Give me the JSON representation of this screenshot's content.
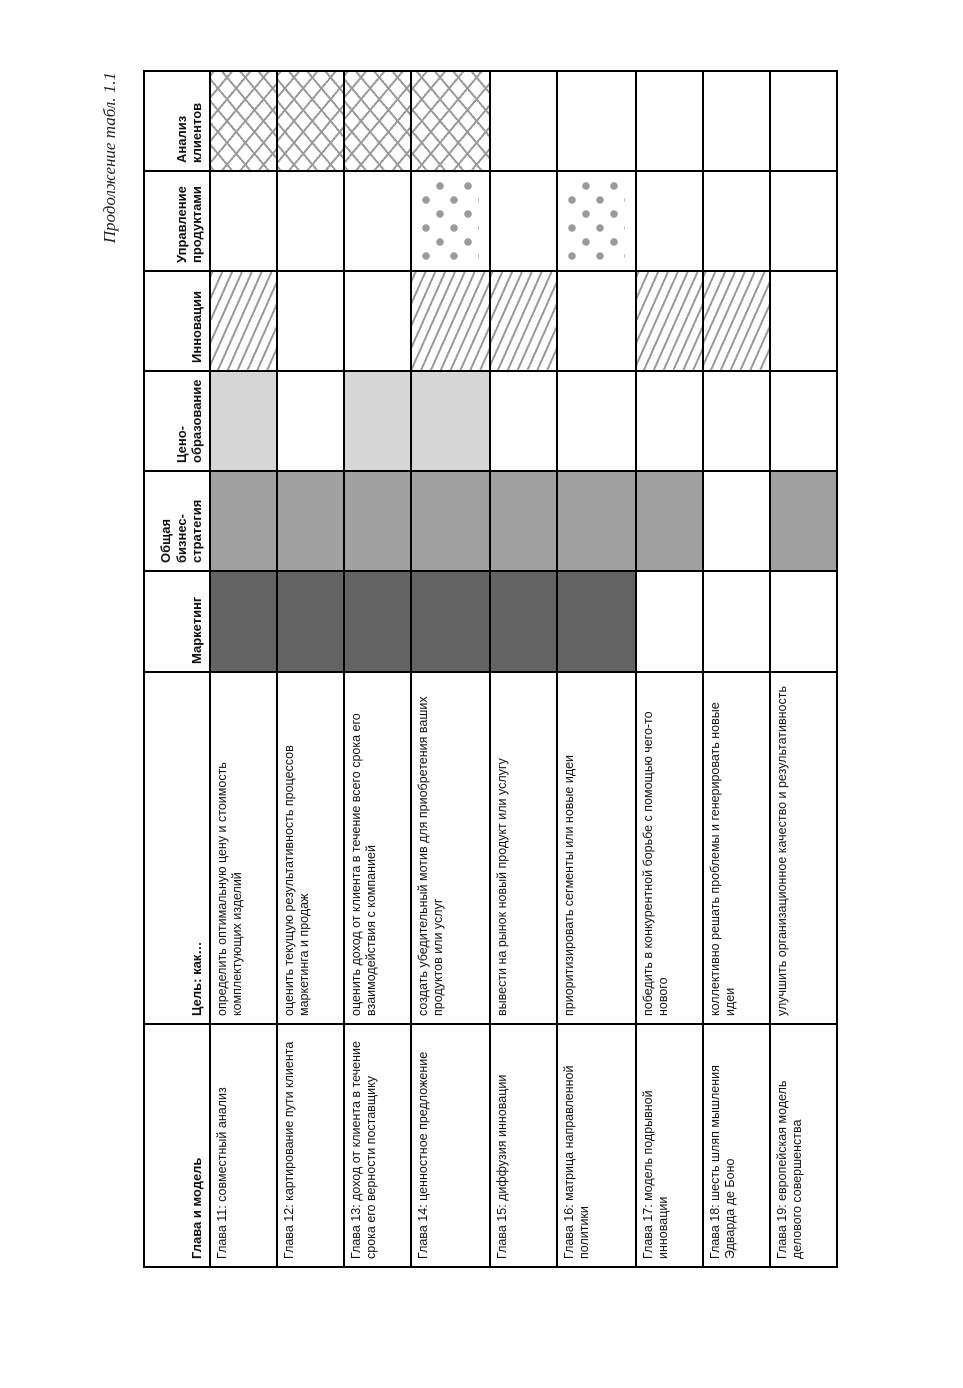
{
  "caption": "Продолжение табл. 1.1",
  "table": {
    "headers": [
      "Глава и модель",
      "Цель: как…",
      "Маркетинг",
      "Общая бизнес-стратегия",
      "Ценообразование",
      "Инновации",
      "Управление продуктами",
      "Анализ клиентов"
    ],
    "header_display": [
      "Глава и модель",
      "Цель: как…",
      "Маркетинг",
      "Общая бизнес-\nстратегия",
      "Цено-\nобразование",
      "Инновации",
      "Управление продуктами",
      "Анализ клиентов"
    ],
    "legend_fills": {
      "Маркетинг": "#636363",
      "Общая бизнес-стратегия": "#a0a0a0",
      "Ценообразование": "#d6d6d6",
      "Инновации": "diagonal-hatch",
      "Управление продуктами": "dots",
      "Анализ клиентов": "crosshatch"
    },
    "rows": [
      {
        "model": "Глава 11: совместный анализ",
        "goal": "определить оптимальную цену и стоимость комплектующих изделий",
        "marks": [
          1,
          1,
          1,
          1,
          0,
          1
        ]
      },
      {
        "model": "Глава 12: картирование пути клиента",
        "goal": "оценить текущую результативность процессов маркетинга и продаж",
        "marks": [
          1,
          1,
          0,
          0,
          0,
          1
        ]
      },
      {
        "model": "Глава 13: доход от клиента в течение срока его верности поставщику",
        "goal": "оценить доход от клиента в течение всего срока его взаимодействия с компанией",
        "marks": [
          1,
          1,
          1,
          0,
          0,
          1
        ]
      },
      {
        "model": "Глава 14: ценностное предложение",
        "goal": "создать убедительный мотив для приобретения ваших продуктов или услуг",
        "marks": [
          1,
          1,
          1,
          1,
          1,
          1
        ]
      },
      {
        "model": "Глава 15: диффузия инновации",
        "goal": "вывести на рынок новый продукт или услугу",
        "marks": [
          1,
          1,
          0,
          1,
          0,
          0
        ]
      },
      {
        "model": "Глава 16: матрица направленной политики",
        "goal": "приоритизировать сегменты или новые идеи",
        "marks": [
          1,
          1,
          0,
          0,
          1,
          0
        ]
      },
      {
        "model": "Глава 17: модель подрывной инновации",
        "goal": "победить в конкурентной борьбе с помощью чего-то нового",
        "marks": [
          0,
          1,
          0,
          1,
          0,
          0
        ]
      },
      {
        "model": "Глава 18: шесть шляп мышления Эдварда де Боно",
        "goal": "коллективно решать проблемы и генерировать новые идеи",
        "marks": [
          0,
          0,
          0,
          1,
          0,
          0
        ]
      },
      {
        "model": "Глава 19: европейская модель делового совершенства",
        "goal": "улучшить организационное качество и результативность",
        "marks": [
          0,
          1,
          0,
          0,
          0,
          0
        ]
      }
    ]
  }
}
